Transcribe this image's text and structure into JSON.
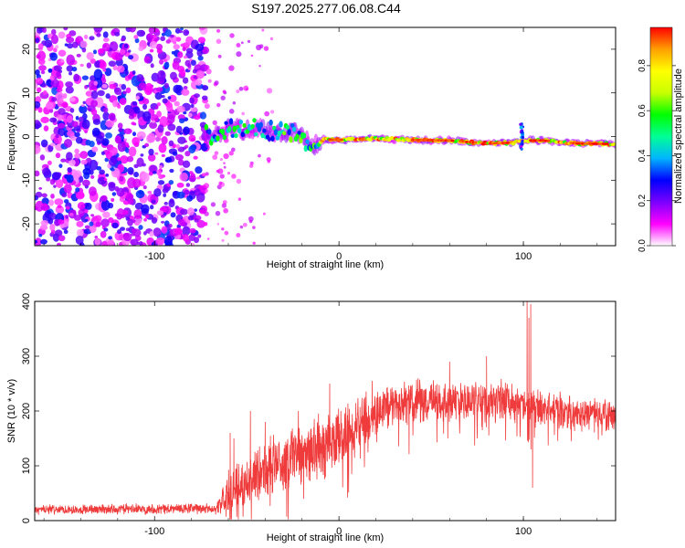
{
  "chart_data": [
    {
      "type": "heatmap",
      "title": "S197.2025.277.06.08.C44",
      "xlabel": "Height of straight line (km)",
      "ylabel": "Frequency (Hz)",
      "xlim": [
        -165,
        150
      ],
      "ylim": [
        -25,
        25
      ],
      "x_ticks": [
        -100,
        0,
        100
      ],
      "y_ticks": [
        -20,
        -10,
        0,
        10,
        20
      ],
      "colorbar": {
        "label": "Normalized spectral amplitude",
        "range": [
          0.0,
          0.97
        ],
        "ticks": [
          0.0,
          0.2,
          0.4,
          0.6,
          0.8
        ],
        "colormap": [
          "#ffffff",
          "#ff00ff",
          "#7a00ff",
          "#0000ff",
          "#00b4ff",
          "#00ff96",
          "#00ff00",
          "#c8ff00",
          "#ffff00",
          "#ffa000",
          "#ff0000"
        ]
      },
      "features": {
        "noise_region_x": [
          -165,
          -72
        ],
        "signal_start_x": -72,
        "ridge": [
          {
            "x": -72,
            "freq": 0.3
          },
          {
            "x": -60,
            "freq": 1.5
          },
          {
            "x": -45,
            "freq": 1.8
          },
          {
            "x": -30,
            "freq": 0.8
          },
          {
            "x": -22,
            "freq": 1.0
          },
          {
            "x": -15,
            "freq": -2.5
          },
          {
            "x": -8,
            "freq": -0.6
          },
          {
            "x": 0,
            "freq": -0.8
          },
          {
            "x": 20,
            "freq": -0.4
          },
          {
            "x": 40,
            "freq": -0.8
          },
          {
            "x": 60,
            "freq": -0.9
          },
          {
            "x": 80,
            "freq": -1.6
          },
          {
            "x": 95,
            "freq": -1.4
          },
          {
            "x": 99,
            "freq": -0.9
          },
          {
            "x": 110,
            "freq": -0.9
          },
          {
            "x": 130,
            "freq": -1.6
          },
          {
            "x": 150,
            "freq": -1.7
          }
        ]
      }
    },
    {
      "type": "line",
      "xlabel": "Height of straight line (km)",
      "ylabel": "SNR (10 * v/v)",
      "xlim": [
        -165,
        150
      ],
      "ylim": [
        0,
        400
      ],
      "x_ticks": [
        -100,
        0,
        100
      ],
      "y_ticks": [
        0,
        100,
        200,
        300,
        400
      ],
      "series": [
        {
          "name": "SNR",
          "color": "#ef3b3b",
          "envelope": [
            {
              "x": -165,
              "mean": 20,
              "spread": 10
            },
            {
              "x": -66,
              "mean": 22,
              "spread": 12
            },
            {
              "x": -61,
              "mean": 50,
              "spread": 45
            },
            {
              "x": -50,
              "mean": 70,
              "spread": 55
            },
            {
              "x": -40,
              "mean": 95,
              "spread": 65
            },
            {
              "x": -25,
              "mean": 115,
              "spread": 70
            },
            {
              "x": -10,
              "mean": 135,
              "spread": 70
            },
            {
              "x": 0,
              "mean": 150,
              "spread": 65
            },
            {
              "x": 15,
              "mean": 185,
              "spread": 55
            },
            {
              "x": 30,
              "mean": 215,
              "spread": 50
            },
            {
              "x": 60,
              "mean": 218,
              "spread": 45
            },
            {
              "x": 90,
              "mean": 222,
              "spread": 45
            },
            {
              "x": 100,
              "mean": 210,
              "spread": 40
            },
            {
              "x": 110,
              "mean": 205,
              "spread": 40
            },
            {
              "x": 130,
              "mean": 195,
              "spread": 35
            },
            {
              "x": 150,
              "mean": 190,
              "spread": 30
            }
          ],
          "spikes": [
            {
              "x": -59,
              "y": 160
            },
            {
              "x": -57,
              "y": 150
            },
            {
              "x": -48,
              "y": 200
            },
            {
              "x": -40,
              "y": 180
            },
            {
              "x": -22,
              "y": 200
            },
            {
              "x": -5,
              "y": 250
            },
            {
              "x": 18,
              "y": 255
            },
            {
              "x": 60,
              "y": 290
            },
            {
              "x": 80,
              "y": 300
            },
            {
              "x": 102,
              "y": 400
            },
            {
              "x": 103,
              "y": 370
            },
            {
              "x": 104,
              "y": 395
            },
            {
              "x": 105,
              "y": 60
            }
          ]
        }
      ]
    }
  ]
}
